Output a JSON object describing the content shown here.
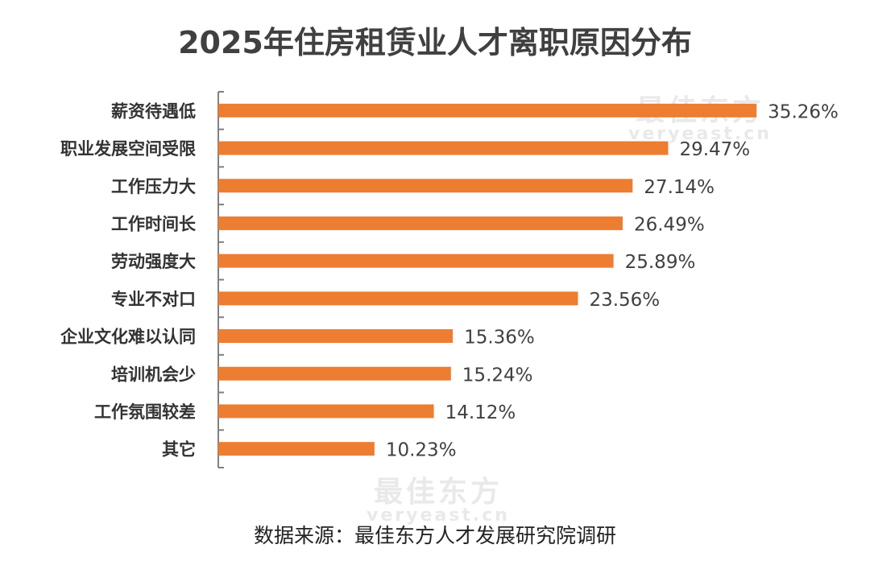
{
  "title": "2025年住房租赁业人才离职原因分布",
  "source": "数据来源：最佳东方人才发展研究院调研",
  "watermark": {
    "cn": "最佳东方",
    "en": "veryeast.cn"
  },
  "colors": {
    "bar": "#ED7D31",
    "axis": "#808080",
    "label": "#333333",
    "value": "#404040"
  },
  "chart_data": {
    "type": "bar",
    "orientation": "horizontal",
    "title": "2025年住房租赁业人才离职原因分布",
    "categories": [
      "薪资待遇低",
      "职业发展空间受限",
      "工作压力大",
      "工作时间长",
      "劳动强度大",
      "专业不对口",
      "企业文化难以认同",
      "培训机会少",
      "工作氛围较差",
      "其它"
    ],
    "values": [
      35.26,
      29.47,
      27.14,
      26.49,
      25.89,
      23.56,
      15.36,
      15.24,
      14.12,
      10.23
    ],
    "value_labels": [
      "35.26%",
      "29.47%",
      "27.14%",
      "26.49%",
      "25.89%",
      "23.56%",
      "15.36%",
      "15.24%",
      "14.12%",
      "10.23%"
    ],
    "xlabel": "",
    "ylabel": "",
    "xlim": [
      0,
      37
    ],
    "grid": false,
    "legend": "none"
  }
}
